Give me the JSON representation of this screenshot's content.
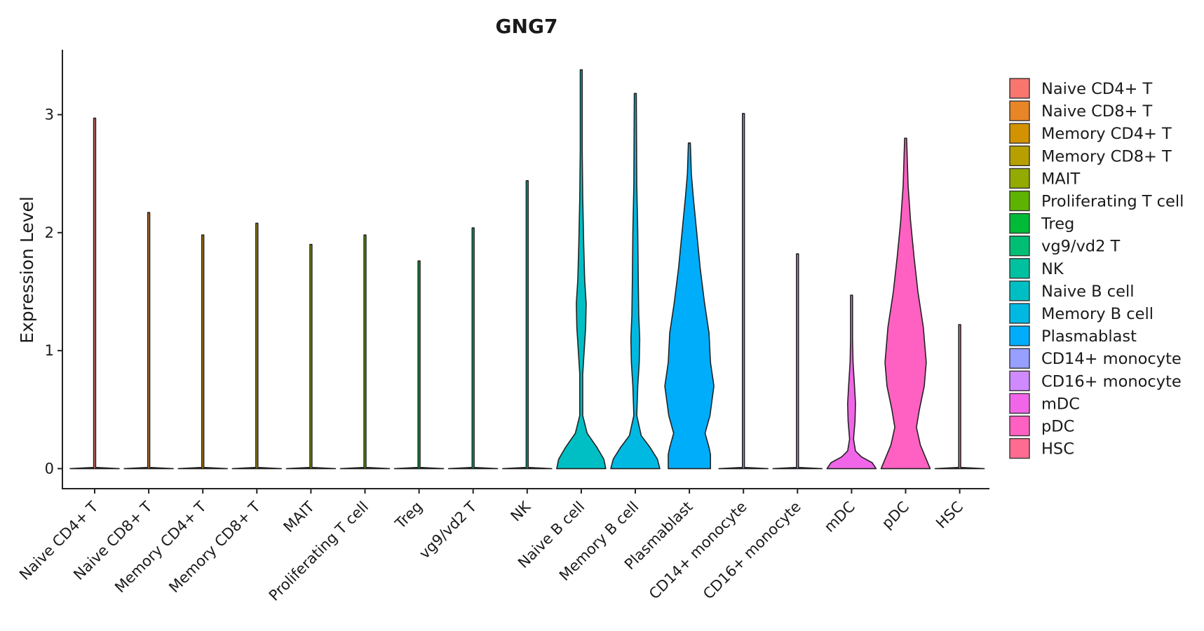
{
  "chart_data": {
    "type": "violin",
    "title": "GNG7",
    "xlabel": "",
    "ylabel": "Expression Level",
    "ylim": [
      -0.17,
      3.55
    ],
    "yticks": [
      0,
      1,
      2,
      3
    ],
    "grid": false,
    "legend_position": "right",
    "categories": [
      "Naive CD4+ T",
      "Naive CD8+ T",
      "Memory CD4+ T",
      "Memory CD8+ T",
      "MAIT",
      "Proliferating T cell",
      "Treg",
      "vg9/vd2 T",
      "NK",
      "Naive B cell",
      "Memory B cell",
      "Plasmablast",
      "CD14+ monocyte",
      "CD16+ monocyte",
      "mDC",
      "pDC",
      "HSC"
    ],
    "colors": [
      "#F8766D",
      "#E88526",
      "#D39200",
      "#B79F00",
      "#93AA00",
      "#5EB300",
      "#00BA38",
      "#00BF74",
      "#00C19F",
      "#00BFC4",
      "#00B9E3",
      "#00ADFA",
      "#979FFF",
      "#D08AFF",
      "#F166E8",
      "#FF61C3",
      "#FF6C91"
    ],
    "max_values": [
      2.97,
      2.17,
      1.98,
      2.08,
      1.9,
      1.98,
      1.76,
      2.04,
      2.44,
      3.38,
      3.18,
      2.76,
      3.01,
      1.82,
      1.47,
      2.8,
      1.22
    ],
    "density_profiles": [
      [
        [
          0,
          0.5
        ],
        [
          0.004,
          0.3
        ],
        [
          0.01,
          0.02
        ],
        [
          2.97,
          0.02
        ]
      ],
      [
        [
          0,
          0.5
        ],
        [
          0.004,
          0.3
        ],
        [
          0.01,
          0.02
        ],
        [
          2.17,
          0.02
        ]
      ],
      [
        [
          0,
          0.5
        ],
        [
          0.004,
          0.3
        ],
        [
          0.01,
          0.02
        ],
        [
          1.98,
          0.02
        ]
      ],
      [
        [
          0,
          0.5
        ],
        [
          0.004,
          0.3
        ],
        [
          0.01,
          0.02
        ],
        [
          2.08,
          0.02
        ]
      ],
      [
        [
          0,
          0.5
        ],
        [
          0.004,
          0.3
        ],
        [
          0.01,
          0.02
        ],
        [
          1.9,
          0.02
        ]
      ],
      [
        [
          0,
          0.5
        ],
        [
          0.004,
          0.3
        ],
        [
          0.01,
          0.02
        ],
        [
          1.98,
          0.02
        ]
      ],
      [
        [
          0,
          0.5
        ],
        [
          0.004,
          0.3
        ],
        [
          0.01,
          0.02
        ],
        [
          1.76,
          0.02
        ]
      ],
      [
        [
          0,
          0.5
        ],
        [
          0.004,
          0.3
        ],
        [
          0.01,
          0.02
        ],
        [
          2.04,
          0.02
        ]
      ],
      [
        [
          0,
          0.5
        ],
        [
          0.004,
          0.3
        ],
        [
          0.01,
          0.02
        ],
        [
          2.44,
          0.02
        ]
      ],
      [
        [
          0,
          0.5
        ],
        [
          0.08,
          0.46
        ],
        [
          0.18,
          0.32
        ],
        [
          0.3,
          0.12
        ],
        [
          0.45,
          0.03
        ],
        [
          0.8,
          0.03
        ],
        [
          1.0,
          0.06
        ],
        [
          1.2,
          0.09
        ],
        [
          1.4,
          0.1
        ],
        [
          1.6,
          0.07
        ],
        [
          1.9,
          0.05
        ],
        [
          2.3,
          0.03
        ],
        [
          2.7,
          0.02
        ],
        [
          3.38,
          0.02
        ]
      ],
      [
        [
          0,
          0.5
        ],
        [
          0.08,
          0.45
        ],
        [
          0.18,
          0.3
        ],
        [
          0.28,
          0.12
        ],
        [
          0.45,
          0.03
        ],
        [
          0.7,
          0.05
        ],
        [
          0.9,
          0.08
        ],
        [
          1.1,
          0.09
        ],
        [
          1.3,
          0.07
        ],
        [
          1.6,
          0.06
        ],
        [
          2.0,
          0.05
        ],
        [
          2.4,
          0.03
        ],
        [
          3.18,
          0.02
        ]
      ],
      [
        [
          0,
          0.43
        ],
        [
          0.12,
          0.43
        ],
        [
          0.18,
          0.4
        ],
        [
          0.3,
          0.32
        ],
        [
          0.45,
          0.42
        ],
        [
          0.7,
          0.5
        ],
        [
          0.9,
          0.43
        ],
        [
          1.15,
          0.4
        ],
        [
          1.4,
          0.31
        ],
        [
          1.7,
          0.22
        ],
        [
          2.0,
          0.15
        ],
        [
          2.3,
          0.08
        ],
        [
          2.5,
          0.04
        ],
        [
          2.76,
          0.02
        ]
      ],
      [
        [
          0,
          0.5
        ],
        [
          0.004,
          0.3
        ],
        [
          0.01,
          0.02
        ],
        [
          3.01,
          0.02
        ]
      ],
      [
        [
          0,
          0.5
        ],
        [
          0.004,
          0.3
        ],
        [
          0.01,
          0.02
        ],
        [
          1.82,
          0.02
        ]
      ],
      [
        [
          0,
          0.5
        ],
        [
          0.05,
          0.42
        ],
        [
          0.1,
          0.2
        ],
        [
          0.15,
          0.08
        ],
        [
          0.25,
          0.04
        ],
        [
          0.4,
          0.07
        ],
        [
          0.55,
          0.08
        ],
        [
          0.7,
          0.06
        ],
        [
          0.9,
          0.03
        ],
        [
          1.1,
          0.02
        ],
        [
          1.47,
          0.02
        ]
      ],
      [
        [
          0,
          0.5
        ],
        [
          0.1,
          0.4
        ],
        [
          0.2,
          0.3
        ],
        [
          0.35,
          0.22
        ],
        [
          0.5,
          0.28
        ],
        [
          0.7,
          0.38
        ],
        [
          0.9,
          0.42
        ],
        [
          1.2,
          0.36
        ],
        [
          1.5,
          0.25
        ],
        [
          1.8,
          0.17
        ],
        [
          2.1,
          0.1
        ],
        [
          2.4,
          0.05
        ],
        [
          2.8,
          0.02
        ]
      ],
      [
        [
          0,
          0.5
        ],
        [
          0.004,
          0.3
        ],
        [
          0.01,
          0.02
        ],
        [
          1.22,
          0.02
        ]
      ]
    ]
  }
}
